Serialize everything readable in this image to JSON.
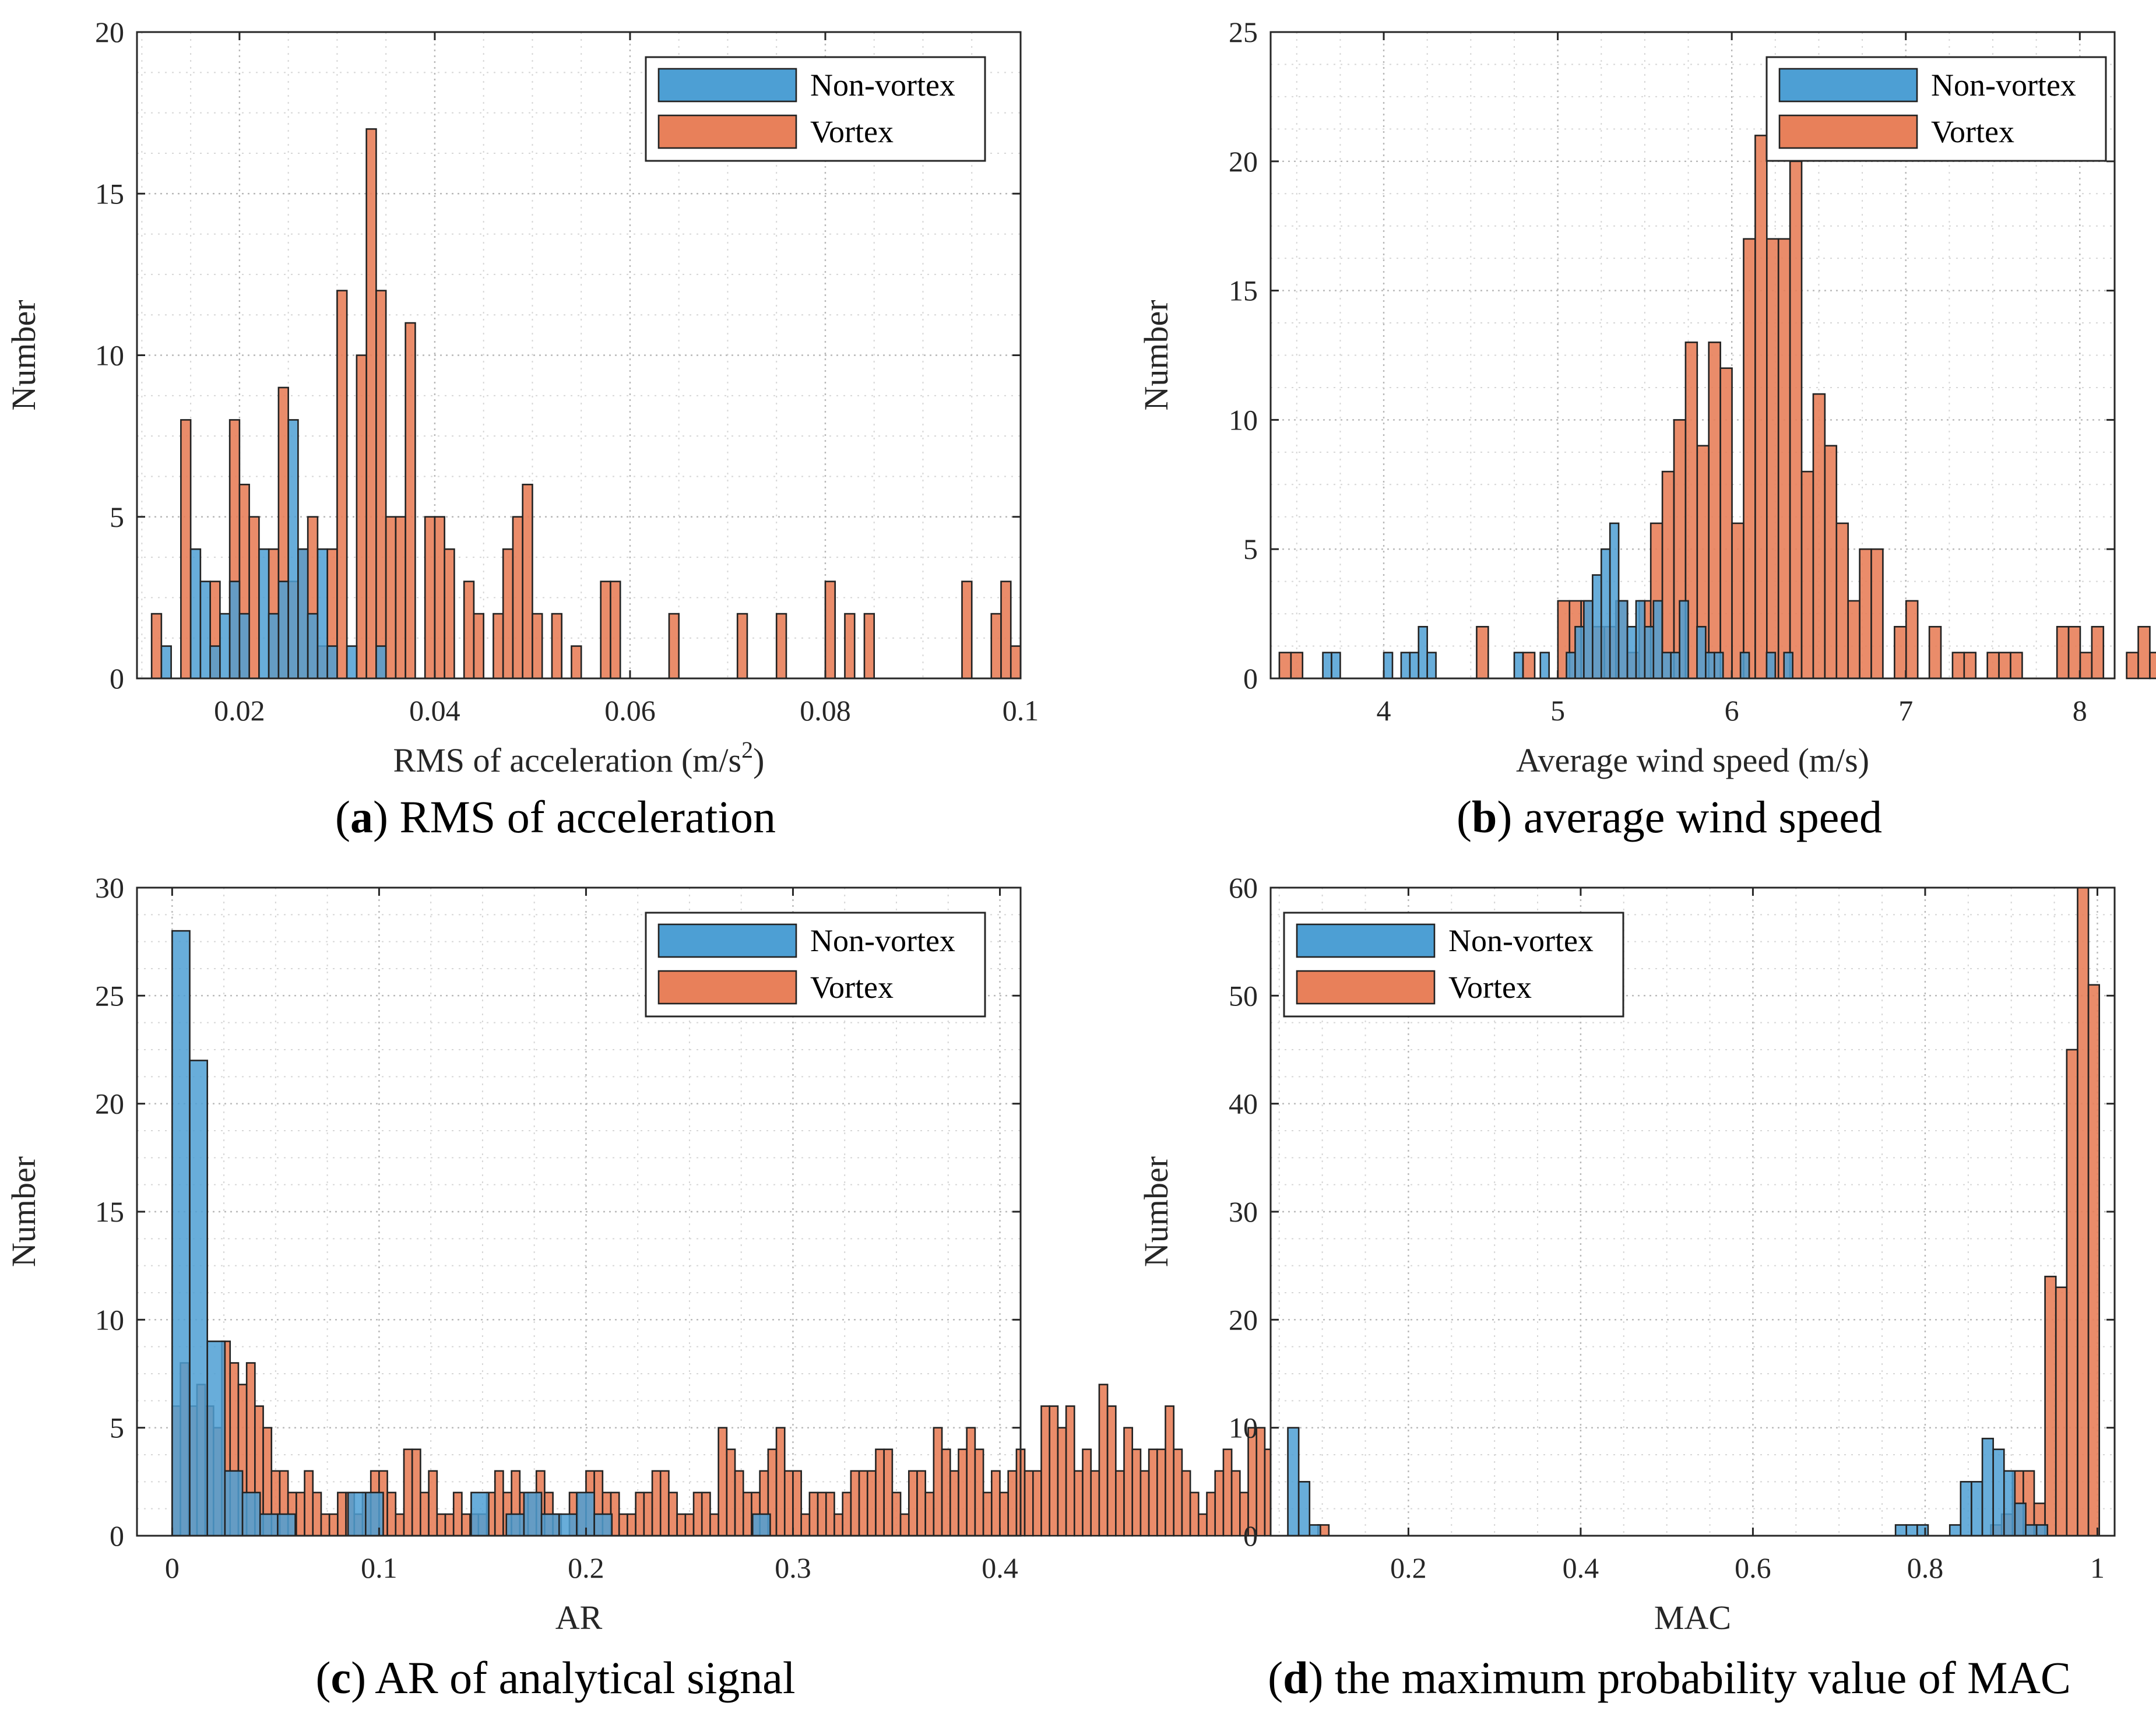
{
  "colors": {
    "nonvortex": "#4d9fd4",
    "vortex": "#e8805a",
    "edge": "#222222",
    "grid": "#c8c8c8",
    "axis": "#262626"
  },
  "chart_data": [
    {
      "id": "a",
      "type": "bar",
      "caption_letter": "a",
      "caption_rest": ") RMS of acceleration",
      "xlabel": "RMS of acceleration (m/s",
      "xlabel_sup": "2",
      "xlabel_end": ")",
      "ylabel": "Number",
      "xlim": [
        0.0095,
        0.1
      ],
      "ylim": [
        0,
        20
      ],
      "xticks": [
        0.02,
        0.04,
        0.06,
        0.08,
        0.1
      ],
      "xticklabels": [
        "0.02",
        "0.04",
        "0.06",
        "0.08",
        "0.1"
      ],
      "yticks": [
        0,
        5,
        10,
        15,
        20
      ],
      "yticklabels": [
        "0",
        "5",
        "10",
        "15",
        "20"
      ],
      "legend_pos": "top-right",
      "series": [
        {
          "name": "Non-vortex",
          "bin_start": 0.012,
          "bin_width": 0.001,
          "values": [
            1,
            0,
            0,
            4,
            3,
            1,
            2,
            3,
            2,
            0,
            4,
            2,
            3,
            8,
            4,
            2,
            4,
            1,
            0,
            1,
            0,
            0,
            1
          ]
        },
        {
          "name": "Vortex",
          "bin_start": 0.011,
          "bin_width": 0.001,
          "values": [
            2,
            0,
            0,
            8,
            0,
            0,
            3,
            0,
            8,
            6,
            5,
            0,
            4,
            9,
            3,
            4,
            5,
            1,
            4,
            12,
            0,
            10,
            17,
            12,
            5,
            5,
            11,
            0,
            5,
            5,
            4,
            0,
            3,
            2,
            0,
            2,
            4,
            5,
            6,
            2,
            0,
            2,
            0,
            1,
            0,
            0,
            3,
            3,
            0,
            0,
            0,
            0,
            0,
            2,
            0,
            0,
            0,
            0,
            0,
            0,
            2,
            0,
            0,
            0,
            2,
            0,
            0,
            0,
            0,
            3,
            0,
            2,
            0,
            2,
            0,
            0,
            0,
            0,
            0,
            0,
            0,
            0,
            0,
            3,
            0,
            0,
            2,
            3,
            1,
            0,
            0
          ]
        }
      ]
    },
    {
      "id": "b",
      "type": "bar",
      "caption_letter": "b",
      "caption_rest": ") average wind speed",
      "xlabel": "Average wind speed (m/s)",
      "xlabel_sup": "",
      "xlabel_end": "",
      "ylabel": "Number",
      "xlim": [
        3.35,
        8.2
      ],
      "ylim": [
        0,
        25
      ],
      "xticks": [
        4,
        5,
        6,
        7,
        8
      ],
      "xticklabels": [
        "4",
        "5",
        "6",
        "7",
        "8"
      ],
      "yticks": [
        0,
        5,
        10,
        15,
        20,
        25
      ],
      "yticklabels": [
        "0",
        "5",
        "10",
        "15",
        "20",
        "25"
      ],
      "legend_pos": "top-right",
      "series": [
        {
          "name": "Non-vortex",
          "bin_start": 3.65,
          "bin_width": 0.05,
          "values": [
            1,
            1,
            0,
            0,
            0,
            0,
            0,
            1,
            0,
            1,
            1,
            2,
            1,
            0,
            0,
            0,
            0,
            0,
            0,
            0,
            0,
            0,
            1,
            0,
            0,
            1,
            0,
            0,
            1,
            2,
            3,
            4,
            5,
            6,
            3,
            2,
            3,
            2,
            3,
            1,
            1,
            3,
            0,
            2,
            1,
            1,
            0,
            0,
            1,
            0,
            0,
            1,
            0,
            1
          ]
        },
        {
          "name": "Vortex",
          "bin_start": 3.4,
          "bin_width": 0.0667,
          "values": [
            1,
            1,
            0,
            0,
            0,
            0,
            0,
            0,
            0,
            0,
            0,
            0,
            0,
            0,
            0,
            0,
            0,
            2,
            0,
            0,
            0,
            1,
            0,
            0,
            3,
            3,
            3,
            2,
            2,
            3,
            1,
            3,
            6,
            8,
            10,
            13,
            9,
            13,
            12,
            6,
            17,
            21,
            17,
            17,
            20,
            8,
            11,
            9,
            6,
            3,
            5,
            5,
            0,
            2,
            3,
            0,
            2,
            0,
            1,
            1,
            0,
            1,
            1,
            1,
            0,
            0,
            0,
            2,
            2,
            1,
            2,
            0,
            0,
            1,
            2,
            1,
            0,
            0,
            0,
            0
          ]
        }
      ]
    },
    {
      "id": "c",
      "type": "bar",
      "caption_letter": "c",
      "caption_rest": ") AR of analytical signal",
      "xlabel": "AR",
      "xlabel_sup": "",
      "xlabel_end": "",
      "ylabel": "Number",
      "xlim": [
        -0.017,
        0.41
      ],
      "ylim": [
        0,
        30
      ],
      "xticks": [
        0,
        0.1,
        0.2,
        0.3,
        0.4
      ],
      "xticklabels": [
        "0",
        "0.1",
        "0.2",
        "0.3",
        "0.4"
      ],
      "yticks": [
        0,
        5,
        10,
        15,
        20,
        25,
        30
      ],
      "yticklabels": [
        "0",
        "5",
        "10",
        "15",
        "20",
        "25",
        "30"
      ],
      "legend_pos": "top-right",
      "series": [
        {
          "name": "Non-vortex",
          "bin_start": 0.0,
          "bin_width": 0.0085,
          "values": [
            28,
            22,
            9,
            3,
            2,
            1,
            1,
            0,
            0,
            0,
            2,
            2,
            0,
            0,
            0,
            0,
            0,
            2,
            0,
            1,
            2,
            1,
            1,
            2,
            1,
            0,
            0,
            0,
            0,
            0,
            0,
            0,
            0,
            1
          ]
        },
        {
          "name": "Vortex",
          "bin_start": 0.0,
          "bin_width": 0.004,
          "values": [
            6,
            8,
            6,
            7,
            6,
            5,
            9,
            8,
            7,
            8,
            6,
            5,
            3,
            3,
            2,
            2,
            3,
            2,
            1,
            1,
            2,
            2,
            1,
            2,
            3,
            3,
            2,
            1,
            4,
            4,
            2,
            3,
            1,
            1,
            2,
            1,
            1,
            1,
            2,
            3,
            2,
            3,
            2,
            2,
            3,
            2,
            1,
            0,
            2,
            2,
            3,
            3,
            2,
            2,
            1,
            1,
            2,
            2,
            3,
            3,
            2,
            1,
            1,
            2,
            2,
            1,
            5,
            4,
            3,
            2,
            2,
            3,
            4,
            5,
            3,
            3,
            1,
            2,
            2,
            2,
            1,
            2,
            3,
            3,
            3,
            4,
            4,
            2,
            1,
            3,
            3,
            2,
            5,
            4,
            3,
            4,
            5,
            4,
            2,
            3,
            2,
            3,
            4,
            3,
            3,
            6,
            6,
            5,
            6,
            3,
            4,
            3,
            7,
            6,
            3,
            5,
            4,
            3,
            4,
            4,
            6,
            4,
            3,
            2,
            1,
            2,
            3,
            4,
            3,
            2,
            5,
            5,
            4,
            2,
            4,
            5,
            5,
            3,
            2,
            3,
            2,
            3,
            3,
            3,
            2,
            1,
            2,
            2,
            2,
            1,
            1,
            1,
            1,
            1,
            0,
            1,
            1,
            0,
            0,
            1,
            0,
            0,
            1,
            0,
            0,
            0,
            0,
            0,
            0,
            1,
            0,
            0,
            0,
            0,
            0,
            0,
            0,
            0,
            0,
            0,
            0,
            0,
            0,
            0,
            0,
            0,
            0,
            0,
            1,
            0,
            0,
            0,
            0,
            0,
            0,
            0,
            0,
            0,
            0,
            0,
            0,
            0,
            0,
            0,
            0,
            0,
            0,
            0,
            0,
            0,
            0,
            0,
            0,
            0,
            0,
            0,
            0,
            0,
            0,
            0,
            0,
            0,
            0,
            0,
            0,
            0,
            0,
            0,
            0,
            0,
            0,
            0,
            0,
            0,
            0,
            0,
            0,
            0,
            0,
            0,
            0,
            0,
            0,
            0,
            0,
            0,
            0,
            0,
            0,
            0,
            0,
            0,
            0,
            0,
            0,
            0,
            0,
            0,
            0,
            0,
            0,
            0,
            0,
            0,
            0,
            1,
            0,
            0,
            0,
            0,
            0,
            0,
            0,
            0,
            0,
            0,
            0,
            0,
            0,
            0,
            0,
            0,
            0,
            0,
            0,
            0,
            0,
            0,
            0,
            0,
            0,
            0,
            0,
            0,
            0,
            0,
            0,
            0,
            0,
            0,
            0,
            0,
            0,
            0,
            0,
            0,
            0,
            0,
            0,
            0,
            0,
            0,
            0,
            0,
            0,
            0,
            0,
            0,
            0,
            0,
            0,
            0,
            0,
            0,
            0,
            0,
            0,
            1,
            0,
            0,
            0,
            0,
            0,
            0,
            1,
            0,
            0,
            0
          ]
        }
      ]
    },
    {
      "id": "d",
      "type": "bar",
      "caption_letter": "d",
      "caption_rest": ") the maximum probability value of MAC",
      "xlabel": "MAC",
      "xlabel_sup": "",
      "xlabel_end": "",
      "ylabel": "Number",
      "xlim": [
        0.04,
        1.02
      ],
      "ylim": [
        0,
        60
      ],
      "xticks": [
        0.2,
        0.4,
        0.6,
        0.8,
        1
      ],
      "xticklabels": [
        "0.2",
        "0.4",
        "0.6",
        "0.8",
        "1"
      ],
      "yticks": [
        0,
        10,
        20,
        30,
        40,
        50,
        60
      ],
      "yticklabels": [
        "0",
        "10",
        "20",
        "30",
        "40",
        "50",
        "60"
      ],
      "legend_pos": "top-left",
      "series": [
        {
          "name": "Non-vortex",
          "bin_start": 0.06,
          "bin_width": 0.0126,
          "values": [
            10,
            5,
            1,
            0,
            0,
            0,
            0,
            0,
            0,
            0,
            0,
            0,
            0,
            0,
            0,
            0,
            0,
            0,
            0,
            0,
            0,
            0,
            0,
            0,
            0,
            0,
            0,
            0,
            0,
            0,
            0,
            0,
            0,
            0,
            0,
            0,
            0,
            0,
            0,
            0,
            0,
            0,
            0,
            0,
            0,
            0,
            0,
            0,
            0,
            0,
            0,
            0,
            0,
            0,
            0,
            0,
            1,
            1,
            1,
            0,
            0,
            1,
            5,
            5,
            9,
            8,
            6,
            3,
            1,
            1
          ]
        },
        {
          "name": "Vortex",
          "bin_start": 0.095,
          "bin_width": 0.0126,
          "values": [
            1,
            0,
            0,
            0,
            0,
            0,
            0,
            0,
            0,
            0,
            0,
            0,
            0,
            0,
            0,
            0,
            0,
            0,
            0,
            0,
            0,
            0,
            0,
            0,
            0,
            0,
            0,
            0,
            0,
            0,
            0,
            0,
            0,
            0,
            0,
            0,
            0,
            0,
            0,
            0,
            0,
            0,
            0,
            0,
            0,
            0,
            0,
            0,
            0,
            0,
            0,
            0,
            0,
            0,
            0,
            0,
            0,
            0,
            0,
            0,
            0,
            0,
            1,
            2,
            6,
            6,
            3,
            24,
            23,
            45,
            60,
            51
          ]
        }
      ]
    }
  ]
}
